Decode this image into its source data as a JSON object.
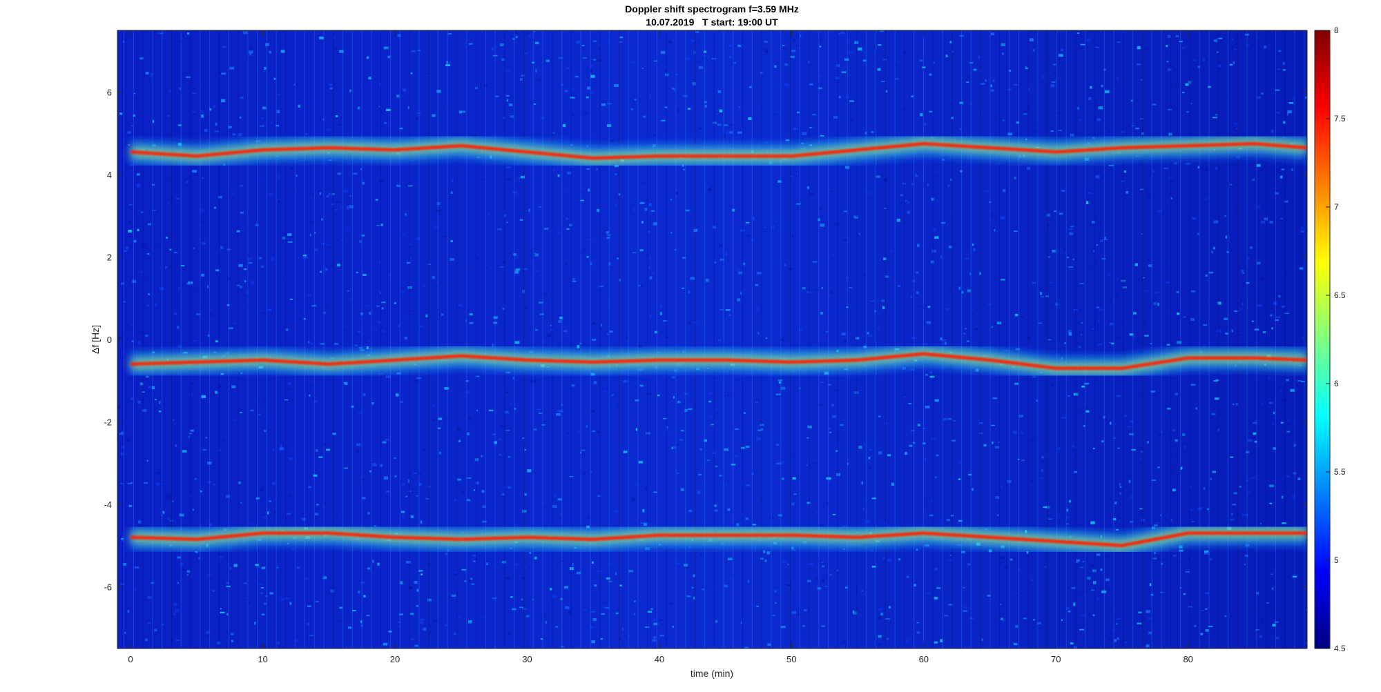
{
  "chart_data": {
    "type": "heatmap",
    "title": "Doppler shift spectrogram f=3.59 MHz",
    "subtitle": "10.07.2019   T start: 19:00 UT",
    "xlabel": "time (min)",
    "ylabel": "Δf [Hz]",
    "xlim": [
      -1,
      89
    ],
    "ylim": [
      -7.5,
      7.5
    ],
    "xticks": [
      0,
      10,
      20,
      30,
      40,
      50,
      60,
      70,
      80
    ],
    "yticks": [
      6,
      4,
      2,
      0,
      -2,
      -4,
      -6
    ],
    "colorbar": {
      "colormap": "jet",
      "range": [
        4.5,
        8
      ],
      "ticks": [
        "8",
        "7.5",
        "7",
        "6.5",
        "6",
        "5.5",
        "5",
        "4.5"
      ],
      "position": "right"
    },
    "series": [
      {
        "x": [
          0,
          5,
          10,
          15,
          20,
          25,
          30,
          35,
          40,
          45,
          50,
          55,
          60,
          65,
          70,
          75,
          80,
          85,
          89
        ],
        "y": [
          4.55,
          4.45,
          4.6,
          4.65,
          4.6,
          4.7,
          4.55,
          4.4,
          4.45,
          4.45,
          4.45,
          4.6,
          4.75,
          4.65,
          4.55,
          4.65,
          4.7,
          4.75,
          4.65
        ]
      },
      {
        "x": [
          0,
          5,
          10,
          15,
          20,
          25,
          30,
          35,
          40,
          45,
          50,
          55,
          60,
          65,
          70,
          75,
          80,
          85,
          89
        ],
        "y": [
          -0.6,
          -0.55,
          -0.5,
          -0.6,
          -0.5,
          -0.4,
          -0.5,
          -0.55,
          -0.5,
          -0.5,
          -0.55,
          -0.5,
          -0.35,
          -0.5,
          -0.7,
          -0.7,
          -0.45,
          -0.45,
          -0.5
        ]
      },
      {
        "x": [
          0,
          5,
          10,
          15,
          20,
          25,
          30,
          35,
          40,
          45,
          50,
          55,
          60,
          65,
          70,
          75,
          80,
          85,
          89
        ],
        "y": [
          -4.8,
          -4.85,
          -4.7,
          -4.7,
          -4.8,
          -4.85,
          -4.8,
          -4.85,
          -4.75,
          -4.75,
          -4.75,
          -4.8,
          -4.7,
          -4.8,
          -4.9,
          -5.0,
          -4.7,
          -4.7,
          -4.7
        ]
      }
    ],
    "grid": false
  }
}
